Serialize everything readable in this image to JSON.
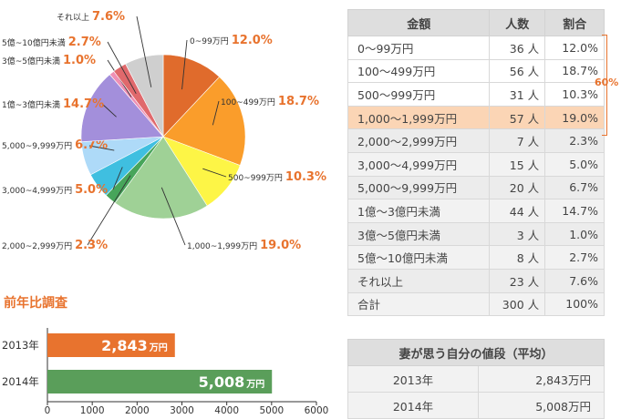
{
  "chart_data": [
    {
      "type": "pie",
      "slices": [
        {
          "label": "0~99万円",
          "value": 12.0,
          "pct_label": "12.0%",
          "color": "#e06b2c"
        },
        {
          "label": "100~499万円",
          "value": 18.7,
          "pct_label": "18.7%",
          "color": "#fa9d2b"
        },
        {
          "label": "500~999万円",
          "value": 10.3,
          "pct_label": "10.3%",
          "color": "#fdf546"
        },
        {
          "label": "1,000~1,999万円",
          "value": 19.0,
          "pct_label": "19.0%",
          "color": "#9fd196"
        },
        {
          "label": "2,000~2,999万円",
          "value": 2.3,
          "pct_label": "2.3%",
          "color": "#47a55a"
        },
        {
          "label": "3,000~4,999万円",
          "value": 5.0,
          "pct_label": "5.0%",
          "color": "#3fbfe0"
        },
        {
          "label": "5,000~9,999万円",
          "value": 6.7,
          "pct_label": "6.7%",
          "color": "#aedaf8"
        },
        {
          "label": "1億~3億円未満",
          "value": 14.7,
          "pct_label": "14.7%",
          "color": "#a38fdb"
        },
        {
          "label": "3億~5億円未満",
          "value": 1.0,
          "pct_label": "1.0%",
          "color": "#ef8fb4"
        },
        {
          "label": "5億~10億円未満",
          "value": 2.7,
          "pct_label": "2.7%",
          "color": "#e0696c"
        },
        {
          "label": "それ以上",
          "value": 7.6,
          "pct_label": "7.6%",
          "color": "#cfcfcf"
        }
      ]
    },
    {
      "type": "bar",
      "orientation": "horizontal",
      "title": "前年比調査",
      "categories": [
        "2013年",
        "2014年"
      ],
      "values": [
        2843,
        5008
      ],
      "value_labels": [
        "2,843",
        "5,008"
      ],
      "value_unit": "万円",
      "colors": [
        "#e8732e",
        "#5a9e5a"
      ],
      "xlim": [
        0,
        6000
      ],
      "xticks": [
        0,
        1000,
        2000,
        3000,
        4000,
        5000,
        6000
      ]
    }
  ],
  "dist_table": {
    "headers": [
      "金額",
      "人数",
      "割合"
    ],
    "rows": [
      {
        "amount": "0〜99万円",
        "count": "36 人",
        "ratio": "12.0%"
      },
      {
        "amount": "100〜499万円",
        "count": "56 人",
        "ratio": "18.7%"
      },
      {
        "amount": "500〜999万円",
        "count": "31 人",
        "ratio": "10.3%"
      },
      {
        "amount": "1,000〜1,999万円",
        "count": "57 人",
        "ratio": "19.0%"
      },
      {
        "amount": "2,000〜2,999万円",
        "count": "7 人",
        "ratio": "2.3%"
      },
      {
        "amount": "3,000〜4,999万円",
        "count": "15 人",
        "ratio": "5.0%"
      },
      {
        "amount": "5,000〜9,999万円",
        "count": "20 人",
        "ratio": "6.7%"
      },
      {
        "amount": "1億〜3億円未満",
        "count": "44 人",
        "ratio": "14.7%"
      },
      {
        "amount": "3億〜5億円未満",
        "count": "3 人",
        "ratio": "1.0%"
      },
      {
        "amount": "5億〜10億円未満",
        "count": "8 人",
        "ratio": "2.7%"
      },
      {
        "amount": "それ以上",
        "count": "23 人",
        "ratio": "7.6%"
      },
      {
        "amount": "合計",
        "count": "300 人",
        "ratio": "100%"
      }
    ],
    "highlight_row": 3,
    "bracket_label": "60%"
  },
  "self_table": {
    "header": "妻が思う自分の値段（平均）",
    "rows": [
      {
        "year": "2013年",
        "value": "2,843万円"
      },
      {
        "year": "2014年",
        "value": "5,008万円"
      }
    ]
  }
}
